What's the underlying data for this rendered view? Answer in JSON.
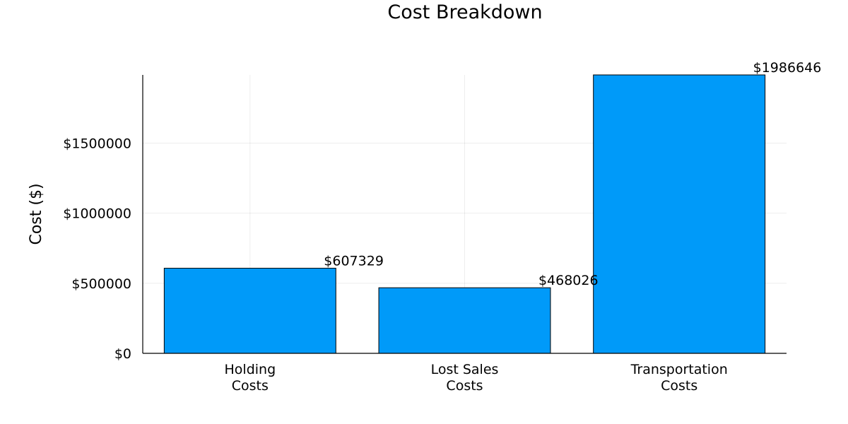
{
  "chart_data": {
    "type": "bar",
    "title": "Cost Breakdown",
    "xlabel": "",
    "ylabel": "Cost ($)",
    "categories": [
      [
        "Holding",
        "Costs"
      ],
      [
        "Lost Sales",
        "Costs"
      ],
      [
        "Transportation",
        "Costs"
      ]
    ],
    "values": [
      607329,
      468026,
      1986646
    ],
    "data_labels": [
      "$607329",
      "$468026",
      "$1986646"
    ],
    "yticks": [
      0,
      500000,
      1000000,
      1500000
    ],
    "ytick_labels": [
      "$0",
      "$500000",
      "$1000000",
      "$1500000"
    ],
    "ylim": [
      0,
      1986646
    ],
    "grid": true,
    "legend": "none",
    "colors": {
      "bar": "#009af9",
      "edge": "#000000"
    }
  }
}
